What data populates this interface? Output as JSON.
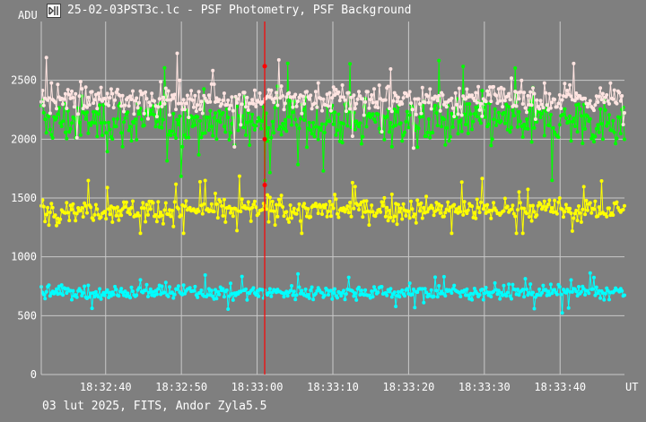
{
  "window": {
    "title": "25-02-03PST3c.lc - PSF Photometry, PSF Background",
    "footer": "03 lut 2025, FITS, Andor Zyla5.5"
  },
  "colors": {
    "background": "#7f7f7f",
    "grid": "#c8c8c8",
    "text": "#ffffff",
    "cursor": "#ff0000",
    "series": [
      "#00ff00",
      "#ffe4e1",
      "#ffff00",
      "#00ffff"
    ]
  },
  "chart_data": {
    "type": "line",
    "ylabel": "ADU",
    "xlabel": "UT",
    "ylim": [
      0,
      3000
    ],
    "yticks": [
      0,
      500,
      1000,
      1500,
      2000,
      2500
    ],
    "ytick_labels": [
      "0",
      "500",
      "1000",
      "1500",
      "2000",
      "2500"
    ],
    "xlim": [
      "18:32:31.5",
      "18:33:48.5"
    ],
    "xticks": [
      "18:32:40",
      "18:32:50",
      "18:33:00",
      "18:33:10",
      "18:33:20",
      "18:33:30",
      "18:33:40"
    ],
    "grid": true,
    "cursor_x": "18:33:01",
    "cursor_markers": [
      2620,
      2000,
      1610
    ],
    "series": [
      {
        "color": "#00ff00",
        "mean": 2150,
        "spread": 170,
        "min": 1650,
        "max": 2900,
        "range": [
          "18:32:31.5",
          "18:33:48.5"
        ]
      },
      {
        "color": "#ffe4e1",
        "mean": 2340,
        "spread": 110,
        "min": 1900,
        "max": 2850,
        "range": [
          "18:32:31.5",
          "18:33:48.5"
        ]
      },
      {
        "color": "#ffff00",
        "mean": 1400,
        "spread": 85,
        "min": 1200,
        "max": 1730,
        "range": [
          "18:32:31.5",
          "18:33:48.5"
        ]
      },
      {
        "color": "#00ffff",
        "mean": 700,
        "spread": 50,
        "min": 460,
        "max": 970,
        "range": [
          "18:32:31.5",
          "18:33:48.5"
        ]
      }
    ]
  }
}
